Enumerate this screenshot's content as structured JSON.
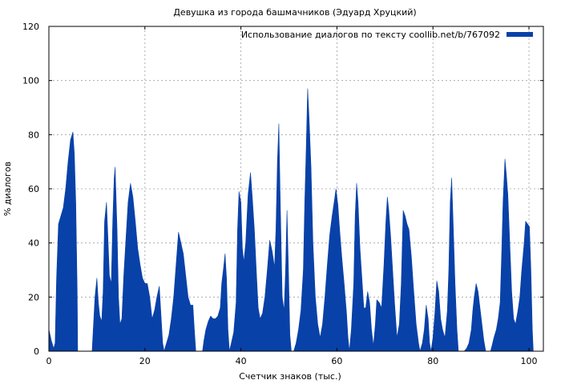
{
  "chart_data": {
    "type": "area",
    "title": "Девушка из города башмачников (Эдуард Хруцкий)",
    "xlabel": "Счетчик знаков (тыс.)",
    "ylabel": "% диалогов",
    "xlim": [
      0,
      103
    ],
    "ylim": [
      0,
      120
    ],
    "xticks": [
      0,
      20,
      40,
      60,
      80,
      100
    ],
    "yticks": [
      0,
      20,
      40,
      60,
      80,
      100,
      120
    ],
    "grid": true,
    "legend_position": "top-right",
    "colors": {
      "series": "#0841a8",
      "grid": "#a0a0a0",
      "frame": "#000000"
    },
    "series": [
      {
        "name": "Использование диалогов по тексту coollib.net/b/767092",
        "points": [
          [
            0,
            8
          ],
          [
            0.5,
            4
          ],
          [
            1,
            1
          ],
          [
            1.3,
            3
          ],
          [
            1.6,
            27
          ],
          [
            2,
            47
          ],
          [
            2.5,
            50
          ],
          [
            3,
            53
          ],
          [
            3.5,
            60
          ],
          [
            4,
            70
          ],
          [
            4.5,
            78
          ],
          [
            5,
            81
          ],
          [
            5.3,
            73
          ],
          [
            5.6,
            55
          ],
          [
            5.9,
            22
          ],
          [
            6,
            0
          ],
          [
            9,
            0
          ],
          [
            9.3,
            10
          ],
          [
            9.6,
            20
          ],
          [
            10,
            27
          ],
          [
            10.3,
            18
          ],
          [
            10.6,
            13
          ],
          [
            11,
            11
          ],
          [
            11.3,
            22
          ],
          [
            11.6,
            48
          ],
          [
            12,
            55
          ],
          [
            12.3,
            42
          ],
          [
            12.6,
            28
          ],
          [
            13,
            25
          ],
          [
            13.3,
            48
          ],
          [
            13.6,
            64
          ],
          [
            13.8,
            68
          ],
          [
            14.2,
            45
          ],
          [
            14.5,
            20
          ],
          [
            14.8,
            10
          ],
          [
            15.2,
            12
          ],
          [
            15.6,
            28
          ],
          [
            16,
            40
          ],
          [
            16.5,
            55
          ],
          [
            17,
            62
          ],
          [
            17.5,
            57
          ],
          [
            18,
            48
          ],
          [
            18.5,
            38
          ],
          [
            19,
            32
          ],
          [
            19.5,
            27
          ],
          [
            20,
            25
          ],
          [
            20.5,
            25
          ],
          [
            21,
            20
          ],
          [
            21.5,
            12
          ],
          [
            22,
            15
          ],
          [
            22.5,
            20
          ],
          [
            23,
            24
          ],
          [
            23.3,
            15
          ],
          [
            23.7,
            3
          ],
          [
            24,
            0
          ],
          [
            24.5,
            3
          ],
          [
            25,
            6
          ],
          [
            25.5,
            12
          ],
          [
            26,
            20
          ],
          [
            26.5,
            32
          ],
          [
            27,
            44
          ],
          [
            27.5,
            40
          ],
          [
            28,
            36
          ],
          [
            28.5,
            28
          ],
          [
            29,
            20
          ],
          [
            29.5,
            17
          ],
          [
            30,
            17
          ],
          [
            30.3,
            8
          ],
          [
            30.6,
            0
          ],
          [
            32,
            0
          ],
          [
            32.3,
            4
          ],
          [
            32.7,
            8
          ],
          [
            33.2,
            11
          ],
          [
            33.7,
            13
          ],
          [
            34.2,
            12
          ],
          [
            34.7,
            12
          ],
          [
            35.2,
            13
          ],
          [
            35.7,
            16
          ],
          [
            36,
            25
          ],
          [
            36.4,
            31
          ],
          [
            36.7,
            36
          ],
          [
            37,
            27
          ],
          [
            37.3,
            8
          ],
          [
            37.6,
            0
          ],
          [
            38,
            3
          ],
          [
            38.5,
            7
          ],
          [
            39,
            18
          ],
          [
            39.3,
            45
          ],
          [
            39.6,
            59
          ],
          [
            40,
            55
          ],
          [
            40.3,
            38
          ],
          [
            40.6,
            33
          ],
          [
            41,
            40
          ],
          [
            41.5,
            58
          ],
          [
            42,
            66
          ],
          [
            42.4,
            56
          ],
          [
            42.8,
            45
          ],
          [
            43.2,
            30
          ],
          [
            43.6,
            16
          ],
          [
            44,
            12
          ],
          [
            44.5,
            14
          ],
          [
            45,
            20
          ],
          [
            45.5,
            30
          ],
          [
            46,
            41
          ],
          [
            46.5,
            37
          ],
          [
            47,
            31
          ],
          [
            47.3,
            45
          ],
          [
            47.6,
            70
          ],
          [
            47.9,
            84
          ],
          [
            48.2,
            55
          ],
          [
            48.6,
            20
          ],
          [
            49,
            15
          ],
          [
            49.3,
            30
          ],
          [
            49.6,
            52
          ],
          [
            49.9,
            30
          ],
          [
            50.2,
            6
          ],
          [
            50.5,
            0
          ],
          [
            51,
            0
          ],
          [
            51.5,
            3
          ],
          [
            52,
            8
          ],
          [
            52.5,
            15
          ],
          [
            53,
            30
          ],
          [
            53.3,
            55
          ],
          [
            53.6,
            75
          ],
          [
            53.9,
            97
          ],
          [
            54.2,
            86
          ],
          [
            54.6,
            68
          ],
          [
            55,
            40
          ],
          [
            55.5,
            20
          ],
          [
            56,
            10
          ],
          [
            56.5,
            5
          ],
          [
            57,
            10
          ],
          [
            57.5,
            20
          ],
          [
            58,
            32
          ],
          [
            58.5,
            43
          ],
          [
            59,
            50
          ],
          [
            59.5,
            56
          ],
          [
            59.8,
            60
          ],
          [
            60.2,
            54
          ],
          [
            60.6,
            44
          ],
          [
            61,
            35
          ],
          [
            61.5,
            25
          ],
          [
            62,
            14
          ],
          [
            62.3,
            5
          ],
          [
            62.6,
            0
          ],
          [
            63,
            8
          ],
          [
            63.5,
            25
          ],
          [
            63.8,
            50
          ],
          [
            64.1,
            62
          ],
          [
            64.4,
            55
          ],
          [
            64.8,
            38
          ],
          [
            65.2,
            27
          ],
          [
            65.6,
            16
          ],
          [
            66,
            16
          ],
          [
            66.4,
            22
          ],
          [
            66.8,
            18
          ],
          [
            67.2,
            8
          ],
          [
            67.6,
            2
          ],
          [
            68,
            10
          ],
          [
            68.3,
            19
          ],
          [
            68.8,
            18
          ],
          [
            69.3,
            16
          ],
          [
            69.8,
            32
          ],
          [
            70.2,
            48
          ],
          [
            70.5,
            57
          ],
          [
            70.8,
            52
          ],
          [
            71.2,
            42
          ],
          [
            71.6,
            30
          ],
          [
            72,
            18
          ],
          [
            72.5,
            5
          ],
          [
            73,
            10
          ],
          [
            73.4,
            25
          ],
          [
            73.8,
            52
          ],
          [
            74.2,
            50
          ],
          [
            74.6,
            47
          ],
          [
            75,
            45
          ],
          [
            75.5,
            35
          ],
          [
            76,
            22
          ],
          [
            76.5,
            10
          ],
          [
            77,
            3
          ],
          [
            77.3,
            0
          ],
          [
            77.8,
            3
          ],
          [
            78.2,
            8
          ],
          [
            78.6,
            17
          ],
          [
            79,
            12
          ],
          [
            79.3,
            3
          ],
          [
            79.6,
            0
          ],
          [
            80,
            5
          ],
          [
            80.4,
            14
          ],
          [
            80.8,
            26
          ],
          [
            81.2,
            22
          ],
          [
            81.6,
            12
          ],
          [
            82,
            8
          ],
          [
            82.5,
            5
          ],
          [
            83,
            15
          ],
          [
            83.3,
            30
          ],
          [
            83.6,
            55
          ],
          [
            83.9,
            64
          ],
          [
            84.2,
            48
          ],
          [
            84.6,
            25
          ],
          [
            85,
            8
          ],
          [
            85.3,
            0
          ],
          [
            86.5,
            0
          ],
          [
            87,
            1
          ],
          [
            87.5,
            3
          ],
          [
            88,
            8
          ],
          [
            88.3,
            15
          ],
          [
            88.6,
            20
          ],
          [
            89,
            25
          ],
          [
            89.4,
            22
          ],
          [
            89.8,
            16
          ],
          [
            90.2,
            10
          ],
          [
            90.6,
            4
          ],
          [
            91,
            0
          ],
          [
            92,
            0
          ],
          [
            92.3,
            2
          ],
          [
            92.7,
            5
          ],
          [
            93.2,
            8
          ],
          [
            93.6,
            12
          ],
          [
            94,
            18
          ],
          [
            94.3,
            35
          ],
          [
            94.6,
            55
          ],
          [
            95,
            71
          ],
          [
            95.3,
            65
          ],
          [
            95.6,
            58
          ],
          [
            96,
            40
          ],
          [
            96.4,
            22
          ],
          [
            96.8,
            12
          ],
          [
            97.2,
            10
          ],
          [
            97.7,
            15
          ],
          [
            98.1,
            20
          ],
          [
            98.5,
            30
          ],
          [
            99,
            40
          ],
          [
            99.3,
            48
          ],
          [
            99.7,
            47
          ],
          [
            100.1,
            46
          ],
          [
            100.4,
            30
          ],
          [
            100.7,
            8
          ],
          [
            100.9,
            0
          ]
        ]
      }
    ]
  }
}
